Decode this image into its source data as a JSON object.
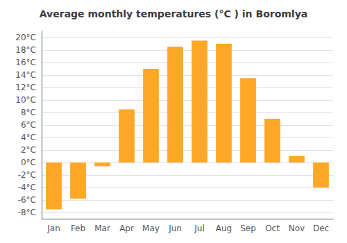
{
  "chart_data": {
    "type": "bar",
    "title": "Average monthly temperatures (°C ) in Boromlya",
    "categories": [
      "Jan",
      "Feb",
      "Mar",
      "Apr",
      "May",
      "Jun",
      "Jul",
      "Aug",
      "Sep",
      "Oct",
      "Nov",
      "Dec"
    ],
    "values": [
      -7.5,
      -5.8,
      -0.6,
      8.5,
      15.0,
      18.5,
      19.5,
      19.0,
      13.5,
      7.0,
      1.0,
      -4.0
    ],
    "color": "#FFA726",
    "ylim": [
      -9,
      21
    ],
    "yticks": [
      {
        "value": -8,
        "label": "-8°C"
      },
      {
        "value": -6,
        "label": "-6°C"
      },
      {
        "value": -4,
        "label": "-4°C"
      },
      {
        "value": -2,
        "label": "-2°C"
      },
      {
        "value": 0,
        "label": "0°C"
      },
      {
        "value": 2,
        "label": "2°C"
      },
      {
        "value": 4,
        "label": "4°C"
      },
      {
        "value": 6,
        "label": "6°C"
      },
      {
        "value": 8,
        "label": "8°C"
      },
      {
        "value": 10,
        "label": "10°C"
      },
      {
        "value": 12,
        "label": "12°C"
      },
      {
        "value": 14,
        "label": "14°C"
      },
      {
        "value": 16,
        "label": "16°C"
      },
      {
        "value": 18,
        "label": "18°C"
      },
      {
        "value": 20,
        "label": "20°C"
      }
    ],
    "grid": true
  }
}
